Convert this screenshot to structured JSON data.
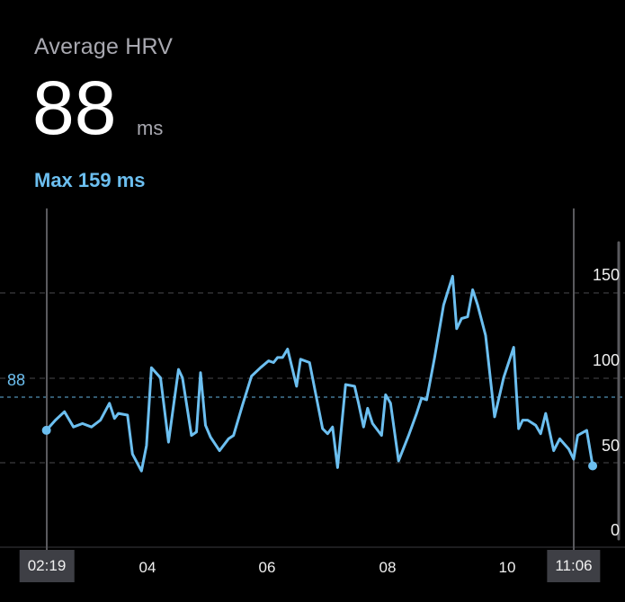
{
  "header": {
    "title": "Average HRV",
    "value": "88",
    "unit": "ms",
    "max_label": "Max 159 ms"
  },
  "colors": {
    "accent": "#6cbff0",
    "background": "#000000",
    "axis_box": "#3e3f45"
  },
  "chart_data": {
    "type": "line",
    "title": "",
    "xlabel": "",
    "ylabel": "",
    "x_tick_labels": [
      "02:19",
      "04",
      "06",
      "08",
      "10",
      "11:06"
    ],
    "y_tick_labels": [
      "0",
      "50",
      "100",
      "150"
    ],
    "ylim": [
      0,
      180
    ],
    "xlim": [
      "02:19",
      "11:06"
    ],
    "average_line": {
      "value": 88,
      "label": "88"
    },
    "grid": true,
    "series": [
      {
        "values": [
          [
            "02:19",
            69
          ],
          [
            "02:28",
            75
          ],
          [
            "02:37",
            80
          ],
          [
            "02:46",
            71
          ],
          [
            "02:55",
            73
          ],
          [
            "03:04",
            71
          ],
          [
            "03:13",
            75
          ],
          [
            "03:22",
            85
          ],
          [
            "03:27",
            76
          ],
          [
            "03:31",
            79
          ],
          [
            "03:40",
            78
          ],
          [
            "03:45",
            55
          ],
          [
            "03:54",
            45
          ],
          [
            "03:59",
            60
          ],
          [
            "04:04",
            106
          ],
          [
            "04:13",
            100
          ],
          [
            "04:21",
            62
          ],
          [
            "04:31",
            105
          ],
          [
            "04:35",
            100
          ],
          [
            "04:44",
            66
          ],
          [
            "04:49",
            68
          ],
          [
            "04:53",
            103
          ],
          [
            "04:58",
            72
          ],
          [
            "05:03",
            65
          ],
          [
            "05:12",
            57
          ],
          [
            "05:21",
            64
          ],
          [
            "05:26",
            66
          ],
          [
            "05:35",
            84
          ],
          [
            "05:44",
            101
          ],
          [
            "05:53",
            106
          ],
          [
            "06:01",
            110
          ],
          [
            "06:06",
            109
          ],
          [
            "06:10",
            112
          ],
          [
            "06:15",
            112
          ],
          [
            "06:20",
            117
          ],
          [
            "06:29",
            95
          ],
          [
            "06:33",
            111
          ],
          [
            "06:42",
            109
          ],
          [
            "06:55",
            70
          ],
          [
            "07:00",
            67
          ],
          [
            "07:05",
            71
          ],
          [
            "07:10",
            47
          ],
          [
            "07:18",
            96
          ],
          [
            "07:27",
            95
          ],
          [
            "07:31",
            85
          ],
          [
            "07:36",
            71
          ],
          [
            "07:40",
            82
          ],
          [
            "07:45",
            73
          ],
          [
            "07:54",
            66
          ],
          [
            "07:58",
            90
          ],
          [
            "08:03",
            85
          ],
          [
            "08:11",
            51
          ],
          [
            "08:21",
            66
          ],
          [
            "08:29",
            79
          ],
          [
            "08:34",
            88
          ],
          [
            "08:39",
            87
          ],
          [
            "08:47",
            112
          ],
          [
            "08:56",
            143
          ],
          [
            "09:05",
            160
          ],
          [
            "09:09",
            129
          ],
          [
            "09:14",
            135
          ],
          [
            "09:20",
            136
          ],
          [
            "09:25",
            152
          ],
          [
            "09:30",
            143
          ],
          [
            "09:38",
            125
          ],
          [
            "09:47",
            77
          ],
          [
            "09:56",
            100
          ],
          [
            "10:06",
            118
          ],
          [
            "10:11",
            70
          ],
          [
            "10:15",
            75
          ],
          [
            "10:20",
            75
          ],
          [
            "10:28",
            72
          ],
          [
            "10:33",
            67
          ],
          [
            "10:38",
            79
          ],
          [
            "10:46",
            57
          ],
          [
            "10:52",
            64
          ],
          [
            "11:01",
            58
          ],
          [
            "11:06",
            52
          ],
          [
            "11:10",
            66
          ],
          [
            "11:19",
            69
          ],
          [
            "11:25",
            48
          ]
        ]
      }
    ]
  }
}
